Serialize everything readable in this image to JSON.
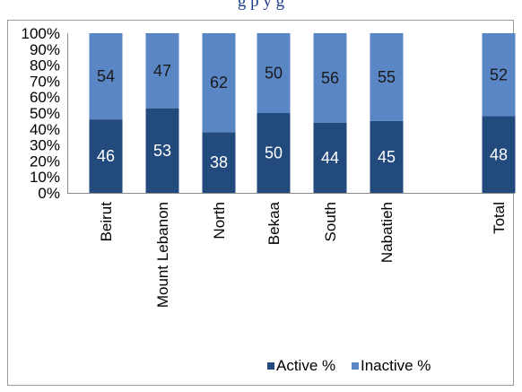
{
  "header": {
    "title_fragment": "g          p            y g"
  },
  "chart_data": {
    "type": "bar",
    "stacked": true,
    "categories": [
      "Beirut",
      "Mount Lebanon",
      "North",
      "Bekaa",
      "South",
      "Nabatieh",
      "Total"
    ],
    "series": [
      {
        "name": "Active %",
        "values": [
          46,
          53,
          38,
          50,
          44,
          45,
          48
        ],
        "color": "#234a7c"
      },
      {
        "name": "Inactive %",
        "values": [
          54,
          47,
          62,
          50,
          56,
          55,
          52
        ],
        "color": "#5a86c5"
      }
    ],
    "ylim": [
      0,
      100
    ],
    "yticks": [
      "0%",
      "10%",
      "20%",
      "30%",
      "40%",
      "50%",
      "60%",
      "70%",
      "80%",
      "90%",
      "100%"
    ],
    "grid": false,
    "legend": "bottom"
  }
}
